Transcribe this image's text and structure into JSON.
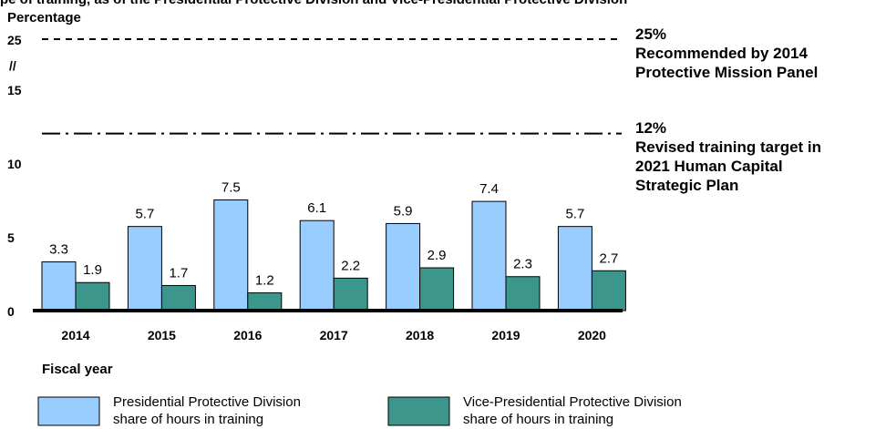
{
  "header_fragment": "pe of training, as of the Presidential Protective Division and Vice-Presidential Protective Division",
  "chart_data": {
    "type": "bar",
    "ylabel": "Percentage",
    "xlabel": "Fiscal year",
    "categories": [
      "2014",
      "2015",
      "2016",
      "2017",
      "2018",
      "2019",
      "2020"
    ],
    "series": [
      {
        "name": "Presidential Protective Division share of hours in training",
        "values": [
          3.3,
          5.7,
          7.5,
          6.1,
          5.9,
          7.4,
          5.7
        ],
        "color": "#99ccff"
      },
      {
        "name": "Vice-Presidential Protective Division share of hours in training",
        "values": [
          1.9,
          1.7,
          1.2,
          2.2,
          2.9,
          2.3,
          2.7
        ],
        "color": "#3d968b"
      }
    ],
    "y_ticks": [
      "0",
      "5",
      "10",
      "15",
      "25"
    ],
    "axis_break_label": "//",
    "ylim": [
      0,
      25
    ],
    "reference_lines": [
      {
        "value": 25,
        "style": "dashed",
        "label_lines": [
          "25%",
          "Recommended by 2014",
          "Protective Mission Panel"
        ]
      },
      {
        "value": 12,
        "style": "dash-dot",
        "label_lines": [
          "12%",
          "Revised training target in",
          "2021 Human Capital",
          "Strategic Plan"
        ]
      }
    ],
    "legend": [
      {
        "label_lines": [
          "Presidential Protective Division",
          "share of hours in training"
        ],
        "color": "#99ccff"
      },
      {
        "label_lines": [
          "Vice-Presidential Protective Division",
          "share of hours in training"
        ],
        "color": "#3d968b"
      }
    ],
    "legend_position": "bottom",
    "grid": false
  }
}
